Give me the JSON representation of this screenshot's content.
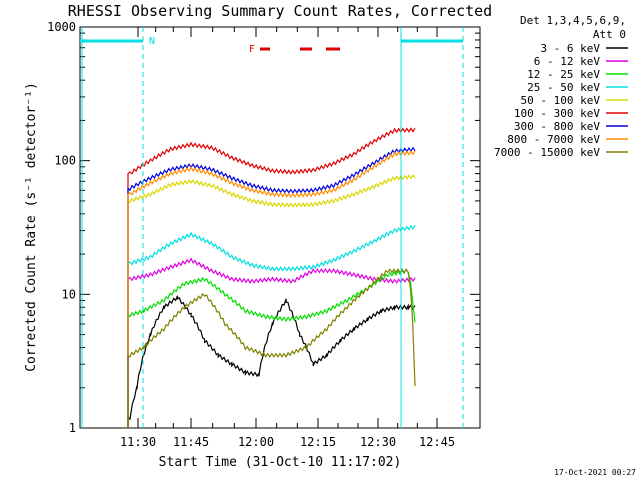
{
  "chart_data": {
    "type": "line",
    "title": "RHESSI Observing Summary Count Rates, Corrected",
    "xlabel": "Start Time (31-Oct-10 11:17:02)",
    "ylabel": "Corrected Count Rate (s⁻¹ detector⁻¹)",
    "yscale": "log",
    "ylim": [
      1,
      1000
    ],
    "xlim_minutes": [
      0,
      51
    ],
    "x_tick_labels": [
      "11:30",
      "11:45",
      "12:00",
      "12:15",
      "12:30",
      "12:45"
    ],
    "y_tick_labels": [
      "1",
      "10",
      "100",
      "1000"
    ],
    "legend_header": [
      "Det 1,3,4,5,6,9,",
      "Att 0"
    ],
    "legend_position": "right",
    "timestamp": "17-Oct-2021 00:27",
    "series": [
      {
        "name": "3 - 6 keV",
        "color": "#000000",
        "x": [
          1,
          2,
          4,
          6,
          8,
          10,
          12,
          14,
          16,
          18,
          20,
          22,
          24,
          26,
          28,
          30,
          32,
          34,
          36,
          38,
          40,
          42,
          43
        ],
        "values": [
          1.2,
          2.0,
          5.0,
          8.0,
          9.5,
          7.0,
          4.5,
          3.5,
          3.0,
          2.6,
          2.5,
          6.0,
          9.0,
          5.0,
          3.0,
          3.5,
          4.5,
          5.5,
          6.5,
          7.5,
          8.0,
          8.0,
          8.0
        ]
      },
      {
        "name": "6 - 12 keV",
        "color": "#e000e0",
        "x": [
          1,
          4,
          7,
          10,
          13,
          16,
          19,
          22,
          25,
          28,
          31,
          34,
          37,
          40,
          43
        ],
        "values": [
          13,
          14,
          16,
          18,
          15,
          13,
          12.5,
          13,
          12.5,
          15,
          15,
          14,
          13,
          12.5,
          13
        ]
      },
      {
        "name": "12 - 25 keV",
        "color": "#00e000",
        "x": [
          1,
          3,
          6,
          9,
          12,
          15,
          18,
          21,
          24,
          27,
          30,
          33,
          36,
          39,
          42,
          43
        ],
        "values": [
          7,
          7.5,
          9,
          12,
          13,
          10,
          7.5,
          6.8,
          6.5,
          6.8,
          7.5,
          9,
          11,
          14,
          15,
          6
        ]
      },
      {
        "name": "25 - 50 keV",
        "color": "#00e0e0",
        "x": [
          1,
          4,
          7,
          10,
          13,
          16,
          19,
          22,
          25,
          28,
          31,
          34,
          37,
          40,
          43
        ],
        "values": [
          17,
          19,
          24,
          28,
          24,
          19,
          16.5,
          15.5,
          15.5,
          16,
          18,
          21,
          25,
          30,
          32
        ]
      },
      {
        "name": "50 - 100 keV",
        "color": "#d8d800",
        "x": [
          1,
          4,
          7,
          10,
          13,
          16,
          19,
          22,
          25,
          28,
          31,
          34,
          37,
          40,
          43
        ],
        "values": [
          50,
          56,
          66,
          70,
          65,
          56,
          50,
          47,
          46.5,
          47,
          50,
          56,
          64,
          74,
          76
        ]
      },
      {
        "name": "100 - 300 keV",
        "color": "#e00000",
        "x": [
          1,
          4,
          7,
          10,
          13,
          16,
          19,
          22,
          25,
          28,
          31,
          34,
          37,
          40,
          43
        ],
        "values": [
          80,
          100,
          122,
          132,
          125,
          105,
          92,
          84,
          82,
          85,
          95,
          112,
          140,
          168,
          170
        ]
      },
      {
        "name": "300 - 800 keV",
        "color": "#0000e0",
        "x": [
          1,
          4,
          7,
          10,
          13,
          16,
          19,
          22,
          25,
          28,
          31,
          34,
          37,
          40,
          43
        ],
        "values": [
          62,
          74,
          86,
          92,
          86,
          74,
          65,
          60,
          59,
          60,
          65,
          78,
          96,
          118,
          122
        ]
      },
      {
        "name": "800 - 7000 keV",
        "color": "#ff8c00",
        "x": [
          1,
          4,
          7,
          10,
          13,
          16,
          19,
          22,
          25,
          28,
          31,
          34,
          37,
          40,
          43
        ],
        "values": [
          56,
          68,
          80,
          87,
          80,
          68,
          60,
          56,
          55,
          56,
          60,
          72,
          90,
          112,
          115
        ]
      },
      {
        "name": "7000 - 15000 keV",
        "color": "#808000",
        "x": [
          1,
          3,
          6,
          9,
          12,
          15,
          18,
          21,
          24,
          27,
          30,
          33,
          36,
          39,
          42,
          43
        ],
        "values": [
          3.5,
          4,
          5.5,
          8,
          10,
          6,
          4,
          3.5,
          3.5,
          4,
          5.5,
          8,
          11,
          15,
          15,
          2
        ]
      }
    ],
    "annotations": {
      "N": {
        "label": "N",
        "color": "#00e0e0",
        "x_minutes": 7
      },
      "F": {
        "label": "F",
        "color": "#e00000",
        "x_minutes": [
          21.5,
          31
        ]
      },
      "night_markers_x_minutes": [
        0,
        7,
        40,
        48
      ]
    }
  }
}
